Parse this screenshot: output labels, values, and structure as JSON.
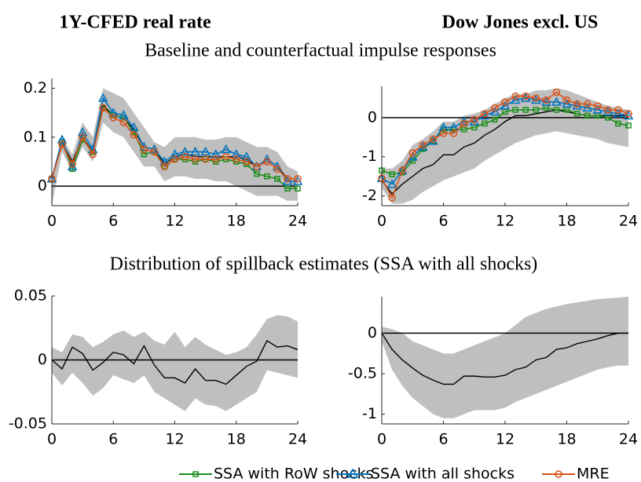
{
  "column_titles": [
    "1Y-CFED real rate",
    "Dow Jones excl. US"
  ],
  "row_titles": [
    "Baseline and counterfactual impulse responses",
    "Distribution of spillback estimates (SSA with all shocks)"
  ],
  "chart_data": [
    {
      "type": "line",
      "x": [
        0,
        1,
        2,
        3,
        4,
        5,
        6,
        7,
        8,
        9,
        10,
        11,
        12,
        13,
        14,
        15,
        16,
        17,
        18,
        19,
        20,
        21,
        22,
        23,
        24
      ],
      "xlim": [
        0,
        24
      ],
      "xticks": [
        0,
        6,
        12,
        18,
        24
      ],
      "ylim": [
        -0.04,
        0.22
      ],
      "yticks": [
        0,
        0.1,
        0.2
      ],
      "hline": 0,
      "band": {
        "color": "#bfbfbf",
        "upper": [
          0.02,
          0.1,
          0.065,
          0.13,
          0.1,
          0.2,
          0.19,
          0.18,
          0.15,
          0.12,
          0.09,
          0.08,
          0.1,
          0.1,
          0.1,
          0.095,
          0.095,
          0.1,
          0.1,
          0.09,
          0.08,
          0.08,
          0.07,
          0.04,
          0.03
        ],
        "lower": [
          -0.04,
          0.07,
          0.03,
          0.08,
          0.05,
          0.13,
          0.11,
          0.1,
          0.07,
          0.04,
          0.04,
          0.01,
          0.02,
          0.02,
          0.015,
          0.015,
          0.01,
          0.01,
          0.0,
          -0.01,
          -0.02,
          -0.02,
          -0.02,
          -0.03,
          -0.03
        ]
      },
      "series": [
        {
          "color": "#000000",
          "values": [
            0.015,
            0.09,
            0.05,
            0.1,
            0.07,
            0.165,
            0.145,
            0.14,
            0.115,
            0.08,
            0.075,
            0.045,
            0.06,
            0.065,
            0.06,
            0.06,
            0.06,
            0.06,
            0.06,
            0.055,
            0.04,
            0.055,
            0.04,
            0.015,
            0.015
          ]
        },
        {
          "name": "SSA with RoW shocks",
          "color": "#1a8f1a",
          "marker": "square",
          "values": [
            0.015,
            0.09,
            0.035,
            0.095,
            0.07,
            0.16,
            0.145,
            0.14,
            0.11,
            0.065,
            0.07,
            0.04,
            0.055,
            0.055,
            0.05,
            0.055,
            0.05,
            0.055,
            0.05,
            0.045,
            0.025,
            0.02,
            0.015,
            -0.005,
            -0.005
          ]
        },
        {
          "name": "SSA with all shocks",
          "color": "#0072bd",
          "marker": "triangle",
          "values": [
            0.015,
            0.095,
            0.04,
            0.11,
            0.075,
            0.18,
            0.15,
            0.145,
            0.12,
            0.08,
            0.075,
            0.05,
            0.065,
            0.07,
            0.07,
            0.07,
            0.065,
            0.075,
            0.065,
            0.06,
            0.04,
            0.055,
            0.04,
            0.01,
            0.01
          ]
        },
        {
          "name": "MRE",
          "color": "#d95319",
          "marker": "circle",
          "values": [
            0.015,
            0.085,
            0.045,
            0.1,
            0.065,
            0.16,
            0.14,
            0.13,
            0.105,
            0.075,
            0.07,
            0.04,
            0.055,
            0.06,
            0.055,
            0.055,
            0.055,
            0.06,
            0.055,
            0.05,
            0.04,
            0.05,
            0.035,
            0.015,
            0.015
          ]
        }
      ]
    },
    {
      "type": "line",
      "x": [
        0,
        1,
        2,
        3,
        4,
        5,
        6,
        7,
        8,
        9,
        10,
        11,
        12,
        13,
        14,
        15,
        16,
        17,
        18,
        19,
        20,
        21,
        22,
        23,
        24
      ],
      "xlim": [
        0,
        24
      ],
      "xticks": [
        0,
        6,
        12,
        18,
        24
      ],
      "ylim": [
        -2.25,
        0.8
      ],
      "yticks": [
        -2,
        -1,
        0
      ],
      "hline": 0,
      "band": {
        "color": "#bfbfbf",
        "upper": [
          -1.3,
          -1.3,
          -1.1,
          -0.7,
          -0.55,
          -0.35,
          -0.1,
          -0.1,
          0.05,
          0.1,
          0.2,
          0.35,
          0.5,
          0.6,
          0.6,
          0.7,
          0.7,
          0.75,
          0.7,
          0.6,
          0.5,
          0.4,
          0.3,
          0.25,
          0.2
        ],
        "lower": [
          -1.8,
          -2.2,
          -2.2,
          -2.1,
          -1.9,
          -1.75,
          -1.6,
          -1.5,
          -1.4,
          -1.3,
          -1.1,
          -0.95,
          -0.8,
          -0.65,
          -0.55,
          -0.45,
          -0.4,
          -0.35,
          -0.4,
          -0.45,
          -0.5,
          -0.55,
          -0.65,
          -0.7,
          -0.75
        ]
      },
      "series": [
        {
          "color": "#000000",
          "values": [
            -1.6,
            -1.95,
            -1.7,
            -1.5,
            -1.3,
            -1.2,
            -0.95,
            -0.95,
            -0.75,
            -0.65,
            -0.45,
            -0.3,
            -0.1,
            0.05,
            0.05,
            0.1,
            0.15,
            0.2,
            0.15,
            0.1,
            0.05,
            0.05,
            0.05,
            0.05,
            0.05
          ]
        },
        {
          "color": "#1a8f1a",
          "marker": "square",
          "values": [
            -1.35,
            -1.45,
            -1.4,
            -1.1,
            -0.8,
            -0.6,
            -0.3,
            -0.3,
            -0.3,
            -0.25,
            -0.15,
            -0.05,
            0.15,
            0.2,
            0.2,
            0.2,
            0.25,
            0.2,
            0.2,
            0.1,
            0.05,
            0.05,
            0,
            -0.15,
            -0.2
          ]
        },
        {
          "color": "#0072bd",
          "marker": "triangle",
          "values": [
            -1.55,
            -1.7,
            -1.35,
            -1,
            -0.75,
            -0.6,
            -0.25,
            -0.25,
            -0.1,
            -0.1,
            0.05,
            0.15,
            0.3,
            0.45,
            0.5,
            0.45,
            0.4,
            0.4,
            0.35,
            0.3,
            0.25,
            0.2,
            0.15,
            0.1,
            0.05
          ]
        },
        {
          "color": "#d95319",
          "marker": "circle",
          "values": [
            -1.55,
            -2.05,
            -1.35,
            -0.9,
            -0.7,
            -0.55,
            -0.4,
            -0.4,
            -0.15,
            -0.05,
            0.1,
            0.25,
            0.4,
            0.55,
            0.55,
            0.5,
            0.45,
            0.65,
            0.45,
            0.35,
            0.35,
            0.3,
            0.2,
            0.2,
            0.1
          ]
        }
      ]
    },
    {
      "type": "line",
      "x": [
        0,
        1,
        2,
        3,
        4,
        5,
        6,
        7,
        8,
        9,
        10,
        11,
        12,
        13,
        14,
        15,
        16,
        17,
        18,
        19,
        20,
        21,
        22,
        23,
        24
      ],
      "xlim": [
        0,
        24
      ],
      "xticks": [
        0,
        6,
        12,
        18,
        24
      ],
      "ylim": [
        -0.05,
        0.05
      ],
      "yticks": [
        -0.05,
        0,
        0.05
      ],
      "hline": 0,
      "band": {
        "color": "#bfbfbf",
        "upper": [
          0.01,
          0.006,
          0.02,
          0.018,
          0.01,
          0.014,
          0.02,
          0.023,
          0.018,
          0.022,
          0.015,
          0.012,
          0.022,
          0.01,
          0.018,
          0.012,
          0.008,
          0.004,
          0.006,
          0.01,
          0.02,
          0.032,
          0.035,
          0.034,
          0.03
        ],
        "lower": [
          -0.01,
          -0.02,
          -0.01,
          -0.018,
          -0.028,
          -0.022,
          -0.012,
          -0.015,
          -0.018,
          -0.012,
          -0.025,
          -0.03,
          -0.035,
          -0.04,
          -0.03,
          -0.035,
          -0.036,
          -0.04,
          -0.035,
          -0.03,
          -0.025,
          -0.008,
          -0.01,
          -0.012,
          -0.014
        ]
      },
      "series": [
        {
          "color": "#000000",
          "values": [
            0,
            -0.007,
            0.01,
            0.005,
            -0.008,
            -0.002,
            0.006,
            0.004,
            -0.003,
            0.011,
            -0.004,
            -0.014,
            -0.014,
            -0.018,
            -0.007,
            -0.016,
            -0.016,
            -0.019,
            -0.012,
            -0.005,
            -0.001,
            0.015,
            0.01,
            0.011,
            0.008
          ]
        }
      ]
    },
    {
      "type": "line",
      "x": [
        0,
        1,
        2,
        3,
        4,
        5,
        6,
        7,
        8,
        9,
        10,
        11,
        12,
        13,
        14,
        15,
        16,
        17,
        18,
        19,
        20,
        21,
        22,
        23,
        24
      ],
      "xlim": [
        0,
        24
      ],
      "xticks": [
        0,
        6,
        12,
        18,
        24
      ],
      "ylim": [
        -1.12,
        0.45
      ],
      "yticks": [
        -1,
        -0.5,
        0
      ],
      "hline": 0,
      "band": {
        "color": "#bfbfbf",
        "upper": [
          0.08,
          0.05,
          0,
          -0.1,
          -0.15,
          -0.2,
          -0.25,
          -0.25,
          -0.2,
          -0.15,
          -0.1,
          -0.05,
          0,
          0.1,
          0.2,
          0.25,
          0.3,
          0.33,
          0.36,
          0.38,
          0.4,
          0.42,
          0.43,
          0.44,
          0.45
        ],
        "lower": [
          -0.1,
          -0.45,
          -0.65,
          -0.8,
          -0.9,
          -1,
          -1.05,
          -1.05,
          -1.0,
          -0.95,
          -0.95,
          -0.95,
          -0.92,
          -0.85,
          -0.8,
          -0.75,
          -0.7,
          -0.65,
          -0.6,
          -0.55,
          -0.5,
          -0.45,
          -0.42,
          -0.4,
          -0.4
        ]
      },
      "series": [
        {
          "color": "#000000",
          "values": [
            0,
            -0.2,
            -0.33,
            -0.43,
            -0.52,
            -0.58,
            -0.63,
            -0.63,
            -0.53,
            -0.53,
            -0.54,
            -0.54,
            -0.52,
            -0.45,
            -0.42,
            -0.33,
            -0.3,
            -0.2,
            -0.18,
            -0.13,
            -0.1,
            -0.07,
            -0.03,
            0,
            0
          ]
        }
      ]
    }
  ]
}
